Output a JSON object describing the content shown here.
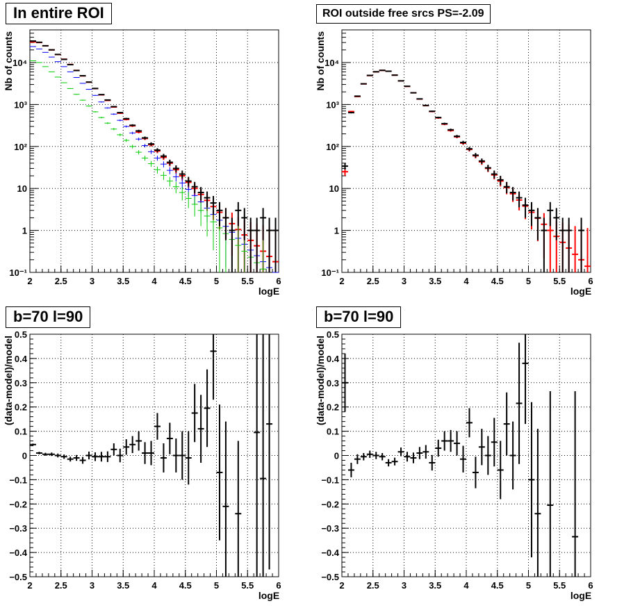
{
  "chart_data": [
    {
      "type": "scatter",
      "panel": "top-left",
      "title": "In entire ROI",
      "xlabel": "logE",
      "ylabel": "Nb of counts",
      "xlim": [
        2,
        6
      ],
      "ylim": [
        0.1,
        60000
      ],
      "yscale": "log",
      "grid": true,
      "x_ticks": [
        "2",
        "2.5",
        "3",
        "3.5",
        "4",
        "4.5",
        "5",
        "5.5",
        "6"
      ],
      "y_ticks": [
        "10⁻¹",
        "1",
        "10",
        "10²",
        "10³",
        "10⁴"
      ],
      "series": [
        {
          "color": "#ff0000",
          "x": [
            2.05,
            2.15,
            2.25,
            2.35,
            2.45,
            2.55,
            2.65,
            2.75,
            2.85,
            2.95,
            3.05,
            3.15,
            3.25,
            3.35,
            3.45,
            3.55,
            3.65,
            3.75,
            3.85,
            3.95,
            4.05,
            4.15,
            4.25,
            4.35,
            4.45,
            4.55,
            4.65,
            4.75,
            4.85,
            4.95,
            5.05,
            5.15,
            5.25,
            5.35,
            5.45,
            5.55,
            5.65,
            5.75,
            5.85,
            5.95
          ],
          "y": [
            31000,
            30000,
            25000,
            20000,
            15500,
            12000,
            9000,
            6500,
            4800,
            3400,
            2400,
            1700,
            1250,
            870,
            620,
            440,
            310,
            220,
            155,
            110,
            78,
            55,
            40,
            28,
            20,
            14,
            10,
            7.2,
            5.2,
            3.7,
            2.7,
            2.0,
            1.45,
            1.05,
            0.78,
            0.58,
            0.43,
            0.32,
            0.24,
            0.18
          ]
        },
        {
          "color": "#0000ff",
          "x": [
            2.05,
            2.15,
            2.25,
            2.35,
            2.45,
            2.55,
            2.65,
            2.75,
            2.85,
            2.95,
            3.05,
            3.15,
            3.25,
            3.35,
            3.45,
            3.55,
            3.65,
            3.75,
            3.85,
            3.95,
            4.05,
            4.15,
            4.25,
            4.35,
            4.45,
            4.55,
            4.65,
            4.75,
            4.85,
            4.95,
            5.05,
            5.15,
            5.25,
            5.35,
            5.45,
            5.55,
            5.65,
            5.75,
            5.85,
            5.95
          ],
          "y": [
            24000,
            21000,
            17500,
            13500,
            10500,
            8000,
            6000,
            4400,
            3200,
            2300,
            1650,
            1150,
            830,
            590,
            420,
            300,
            210,
            150,
            105,
            75,
            53,
            38,
            27,
            19,
            13.5,
            9.5,
            6.8,
            4.8,
            3.4,
            2.4,
            1.75,
            1.25,
            0.9,
            0.65,
            0.47,
            0.34,
            0.25,
            0.18,
            0.13,
            0.1
          ]
        },
        {
          "color": "#00cc00",
          "x": [
            2.05,
            2.15,
            2.25,
            2.35,
            2.45,
            2.55,
            2.65,
            2.75,
            2.85,
            2.95,
            3.05,
            3.15,
            3.25,
            3.35,
            3.45,
            3.55,
            3.65,
            3.75,
            3.85,
            3.95,
            4.05,
            4.15,
            4.25,
            4.35,
            4.45,
            4.55,
            4.65,
            4.75,
            4.85,
            4.95,
            5.05,
            5.15,
            5.25,
            5.35,
            5.45,
            5.55,
            5.65,
            5.75,
            5.85,
            5.95
          ],
          "y": [
            11000,
            10000,
            8000,
            6000,
            4500,
            3300,
            2400,
            1750,
            1270,
            920,
            670,
            490,
            360,
            260,
            190,
            140,
            100,
            73,
            53,
            39,
            28,
            20.5,
            15,
            11,
            8,
            5.8,
            4.2,
            3.0,
            2.2,
            1.6,
            1.15,
            0.84,
            0.61,
            0.44,
            0.32,
            0.23,
            0.17,
            0.12,
            0.09,
            0.07
          ]
        },
        {
          "color": "#000000",
          "x": [
            2.05,
            2.15,
            2.25,
            2.35,
            2.45,
            2.55,
            2.65,
            2.75,
            2.85,
            2.95,
            3.05,
            3.15,
            3.25,
            3.35,
            3.45,
            3.55,
            3.65,
            3.75,
            3.85,
            3.95,
            4.05,
            4.15,
            4.25,
            4.35,
            4.45,
            4.55,
            4.65,
            4.75,
            4.85,
            4.95,
            5.05,
            5.15,
            5.25,
            5.35,
            5.45,
            5.55,
            5.65,
            5.75,
            5.85,
            5.95
          ],
          "y": [
            32500,
            30400,
            25100,
            20100,
            15600,
            11900,
            8900,
            6450,
            4850,
            3420,
            2410,
            1720,
            1280,
            890,
            640,
            460,
            320,
            235,
            160,
            115,
            82,
            59,
            42,
            30,
            22,
            15,
            11,
            8,
            6,
            4.5,
            3,
            2,
            1,
            3,
            2,
            1,
            1,
            2,
            1,
            1
          ]
        }
      ]
    },
    {
      "type": "scatter",
      "panel": "top-right",
      "title": "ROI outside free srcs PS=-2.09",
      "xlabel": "logE",
      "ylabel": "Nb of counts",
      "xlim": [
        2,
        6
      ],
      "ylim": [
        0.1,
        60000
      ],
      "yscale": "log",
      "grid": true,
      "x_ticks": [
        "2",
        "2.5",
        "3",
        "3.5",
        "4",
        "4.5",
        "5",
        "5.5",
        "6"
      ],
      "y_ticks": [
        "10⁻¹",
        "1",
        "10",
        "10²",
        "10³",
        "10⁴"
      ],
      "series": [
        {
          "color": "#ff0000",
          "x": [
            2.05,
            2.15,
            2.25,
            2.35,
            2.45,
            2.55,
            2.65,
            2.75,
            2.85,
            2.95,
            3.05,
            3.15,
            3.25,
            3.35,
            3.45,
            3.55,
            3.65,
            3.75,
            3.85,
            3.95,
            4.05,
            4.15,
            4.25,
            4.35,
            4.45,
            4.55,
            4.65,
            4.75,
            4.85,
            4.95,
            5.05,
            5.15,
            5.25,
            5.35,
            5.45,
            5.55,
            5.65,
            5.75,
            5.85,
            5.95
          ],
          "y": [
            25,
            680,
            1550,
            3100,
            4900,
            6000,
            6500,
            6200,
            5000,
            3650,
            2700,
            1900,
            1350,
            940,
            680,
            480,
            340,
            240,
            170,
            120,
            85,
            60,
            43,
            30,
            21,
            15,
            10.5,
            7.5,
            5.3,
            3.8,
            2.7,
            1.95,
            1.4,
            1.0,
            0.72,
            0.52,
            0.38,
            0.27,
            0.2,
            0.14
          ]
        },
        {
          "color": "#000000",
          "x": [
            2.05,
            2.15,
            2.25,
            2.35,
            2.45,
            2.55,
            2.65,
            2.75,
            2.85,
            2.95,
            3.05,
            3.15,
            3.25,
            3.35,
            3.45,
            3.55,
            3.65,
            3.75,
            3.85,
            3.95,
            4.05,
            4.15,
            4.25,
            4.35,
            4.45,
            4.55,
            4.65,
            4.75,
            4.85,
            4.95,
            5.05,
            5.15,
            5.25,
            5.35,
            5.45,
            5.55,
            5.65,
            5.75,
            5.85,
            5.95
          ],
          "y": [
            34,
            640,
            1580,
            3110,
            4930,
            6020,
            6520,
            6210,
            5010,
            3660,
            2720,
            1900,
            1360,
            950,
            690,
            490,
            350,
            250,
            175,
            125,
            88,
            62,
            45,
            31,
            22,
            16,
            11,
            8,
            6,
            4,
            3,
            2,
            1,
            3,
            2,
            1,
            1,
            0,
            1,
            0
          ]
        }
      ]
    },
    {
      "type": "scatter",
      "panel": "bottom-left",
      "title": "b=70 l=90",
      "xlabel": "logE",
      "ylabel": "(data-model)/model",
      "xlim": [
        2,
        6
      ],
      "ylim": [
        -0.5,
        0.5
      ],
      "grid": true,
      "x_ticks": [
        "2",
        "2.5",
        "3",
        "3.5",
        "4",
        "4.5",
        "5",
        "5.5",
        "6"
      ],
      "y_ticks": [
        "−0.5",
        "−0.4",
        "−0.3",
        "−0.2",
        "−0.1",
        "0",
        "0.1",
        "0.2",
        "0.3",
        "0.4",
        "0.5"
      ],
      "series": [
        {
          "color": "#000000",
          "x": [
            2.05,
            2.15,
            2.25,
            2.35,
            2.45,
            2.55,
            2.65,
            2.75,
            2.85,
            2.95,
            3.05,
            3.15,
            3.25,
            3.35,
            3.45,
            3.55,
            3.65,
            3.75,
            3.85,
            3.95,
            4.05,
            4.15,
            4.25,
            4.35,
            4.45,
            4.55,
            4.65,
            4.75,
            4.85,
            4.95,
            5.05,
            5.15,
            5.25,
            5.35,
            5.45,
            5.55,
            5.65,
            5.75,
            5.85,
            5.95
          ],
          "y": [
            0.045,
            0.01,
            0.005,
            0.005,
            0.0,
            -0.005,
            -0.015,
            -0.01,
            -0.02,
            0.0,
            -0.005,
            -0.005,
            -0.005,
            0.025,
            0.0,
            0.035,
            0.045,
            0.06,
            0.01,
            0.01,
            0.12,
            -0.01,
            0.07,
            0.0,
            0.0,
            -0.01,
            0.175,
            0.11,
            0.195,
            0.43,
            -0.07,
            -0.21,
            null,
            -0.24,
            null,
            null,
            0.095,
            -0.095,
            0.13,
            null
          ],
          "err": [
            0.004,
            0.005,
            0.006,
            0.007,
            0.008,
            0.009,
            0.01,
            0.012,
            0.014,
            0.016,
            0.018,
            0.02,
            0.022,
            0.025,
            0.028,
            0.032,
            0.035,
            0.04,
            0.045,
            0.05,
            0.055,
            0.06,
            0.065,
            0.07,
            0.1,
            0.11,
            0.12,
            0.14,
            0.16,
            0.2,
            0.28,
            0.35,
            null,
            0.3,
            null,
            null,
            0.6,
            0.6,
            0.6,
            null
          ]
        }
      ]
    },
    {
      "type": "scatter",
      "panel": "bottom-right",
      "title": "b=70 l=90",
      "xlabel": "logE",
      "ylabel": "(data-model)/model",
      "xlim": [
        2,
        6
      ],
      "ylim": [
        -0.5,
        0.5
      ],
      "grid": true,
      "x_ticks": [
        "2",
        "2.5",
        "3",
        "3.5",
        "4",
        "4.5",
        "5",
        "5.5",
        "6"
      ],
      "y_ticks": [
        "−0.5",
        "−0.4",
        "−0.3",
        "−0.2",
        "−0.1",
        "0",
        "0.1",
        "0.2",
        "0.3",
        "0.4",
        "0.5"
      ],
      "series": [
        {
          "color": "#000000",
          "x": [
            2.05,
            2.15,
            2.25,
            2.35,
            2.45,
            2.55,
            2.65,
            2.75,
            2.85,
            2.95,
            3.05,
            3.15,
            3.25,
            3.35,
            3.45,
            3.55,
            3.65,
            3.75,
            3.85,
            3.95,
            4.05,
            4.15,
            4.25,
            4.35,
            4.45,
            4.55,
            4.65,
            4.75,
            4.85,
            4.95,
            5.05,
            5.15,
            5.25,
            5.35,
            5.45,
            5.55,
            5.65,
            5.75,
            5.85,
            5.95
          ],
          "y": [
            0.3,
            -0.06,
            -0.015,
            -0.005,
            0.005,
            0.0,
            -0.005,
            -0.03,
            -0.025,
            0.015,
            -0.005,
            -0.01,
            0.01,
            0.015,
            -0.03,
            0.03,
            0.06,
            0.06,
            0.05,
            -0.015,
            0.135,
            -0.07,
            0.035,
            0.0,
            0.055,
            -0.06,
            0.13,
            0.0,
            0.215,
            0.38,
            -0.1,
            -0.24,
            null,
            -0.205,
            null,
            null,
            null,
            -0.335,
            null,
            null
          ],
          "err": [
            0.12,
            0.03,
            0.02,
            0.015,
            0.015,
            0.015,
            0.015,
            0.015,
            0.016,
            0.018,
            0.02,
            0.022,
            0.025,
            0.028,
            0.032,
            0.035,
            0.04,
            0.045,
            0.05,
            0.055,
            0.06,
            0.065,
            0.075,
            0.08,
            0.1,
            0.12,
            0.13,
            0.14,
            0.25,
            0.25,
            0.32,
            0.35,
            null,
            0.47,
            null,
            null,
            null,
            0.6,
            null,
            null
          ]
        }
      ]
    }
  ]
}
